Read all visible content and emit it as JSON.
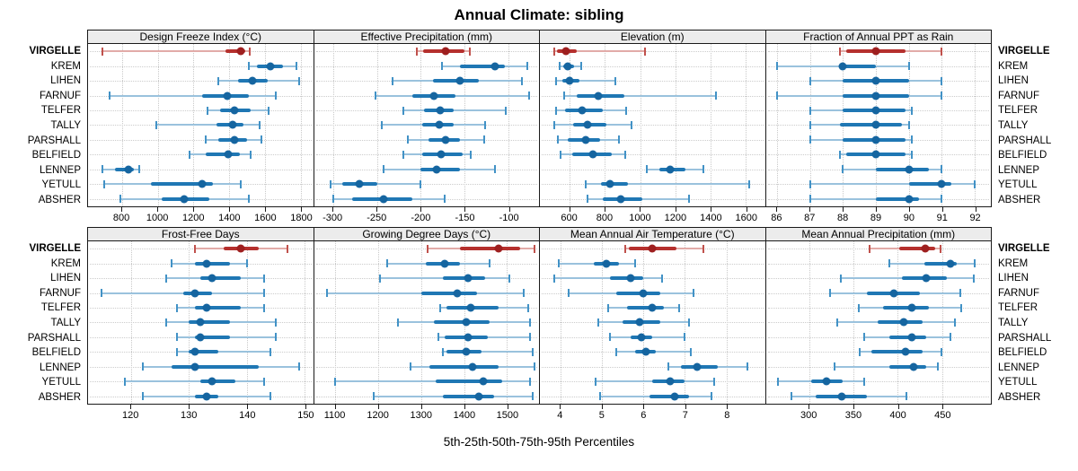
{
  "title": "Annual Climate: sibling",
  "caption": "5th-25th-50th-75th-95th Percentiles",
  "highlight_station": "VIRGELLE",
  "stations": [
    "VIRGELLE",
    "KREM",
    "LIHEN",
    "FARNUF",
    "TELFER",
    "TALLY",
    "PARSHALL",
    "BELFIELD",
    "LENNEP",
    "YETULL",
    "ABSHER"
  ],
  "colors": {
    "highlight_bar": "#b5302d",
    "highlight_dot": "#9e1f1f",
    "highlight_light": "#e2aba8",
    "highlight_cap": "#c0514c",
    "normal_bar": "#1f77b4",
    "normal_dot": "#1565a0",
    "normal_light": "#9ac2dd",
    "normal_cap": "#4292c6",
    "grid": "#c9c9c9",
    "strip_bg": "#ececec",
    "border": "#1a1a1a"
  },
  "chart_data": [
    {
      "type": "interval-dotplot",
      "title": "Design Freeze Index (°C)",
      "percentiles": [
        5,
        25,
        50,
        75,
        95
      ],
      "axis": {
        "min": 610,
        "max": 1870,
        "ticks": [
          800,
          1000,
          1200,
          1400,
          1600,
          1800
        ]
      },
      "values": [
        [
          690,
          1380,
          1465,
          1490,
          1515
        ],
        [
          1510,
          1555,
          1630,
          1700,
          1775
        ],
        [
          1340,
          1450,
          1530,
          1615,
          1790
        ],
        [
          730,
          1250,
          1390,
          1510,
          1660
        ],
        [
          1280,
          1350,
          1430,
          1520,
          1620
        ],
        [
          990,
          1330,
          1420,
          1480,
          1570
        ],
        [
          1270,
          1340,
          1430,
          1500,
          1580
        ],
        [
          1180,
          1270,
          1395,
          1460,
          1520
        ],
        [
          690,
          760,
          835,
          865,
          895
        ],
        [
          700,
          960,
          1250,
          1310,
          1465
        ],
        [
          790,
          1020,
          1150,
          1290,
          1510
        ]
      ]
    },
    {
      "type": "interval-dotplot",
      "title": "Effective Precipitation (mm)",
      "percentiles": [
        5,
        25,
        50,
        75,
        95
      ],
      "axis": {
        "min": -322,
        "max": -65,
        "ticks": [
          -300,
          -250,
          -200,
          -150,
          -100
        ]
      },
      "values": [
        [
          -205,
          -197,
          -172,
          -150,
          -144
        ],
        [
          -176,
          -155,
          -115,
          -104,
          -78
        ],
        [
          -232,
          -186,
          -155,
          -134,
          -84
        ],
        [
          -252,
          -210,
          -185,
          -160,
          -76
        ],
        [
          -220,
          -196,
          -178,
          -162,
          -103
        ],
        [
          -245,
          -198,
          -179,
          -162,
          -127
        ],
        [
          -215,
          -191,
          -172,
          -155,
          -128
        ],
        [
          -220,
          -198,
          -177,
          -152,
          -143
        ],
        [
          -242,
          -200,
          -182,
          -155,
          -115
        ],
        [
          -303,
          -290,
          -270,
          -250,
          -200
        ],
        [
          -300,
          -278,
          -243,
          -210,
          -173
        ]
      ]
    },
    {
      "type": "interval-dotplot",
      "title": "Elevation (m)",
      "percentiles": [
        5,
        25,
        50,
        75,
        95
      ],
      "axis": {
        "min": 430,
        "max": 1710,
        "ticks": [
          600,
          800,
          1000,
          1200,
          1400,
          1600
        ]
      },
      "values": [
        [
          510,
          525,
          580,
          640,
          1030
        ],
        [
          540,
          565,
          590,
          625,
          665
        ],
        [
          520,
          560,
          600,
          655,
          860
        ],
        [
          570,
          640,
          760,
          910,
          1430
        ],
        [
          520,
          575,
          670,
          790,
          920
        ],
        [
          510,
          620,
          700,
          810,
          950
        ],
        [
          530,
          590,
          690,
          770,
          880
        ],
        [
          550,
          615,
          730,
          840,
          915
        ],
        [
          1040,
          1110,
          1170,
          1260,
          1360
        ],
        [
          690,
          780,
          830,
          930,
          1620
        ],
        [
          700,
          790,
          890,
          1010,
          1280
        ]
      ]
    },
    {
      "type": "interval-dotplot",
      "title": "Fraction of Annual PPT as Rain",
      "percentiles": [
        5,
        25,
        50,
        75,
        95
      ],
      "axis": {
        "min": 85.65,
        "max": 92.5,
        "ticks": [
          86,
          87,
          88,
          89,
          90,
          91,
          92
        ]
      },
      "values": [
        [
          87.9,
          88.1,
          89,
          89.9,
          91
        ],
        [
          86,
          87.9,
          88,
          89,
          90
        ],
        [
          87,
          88,
          89,
          90,
          91
        ],
        [
          86,
          88,
          89,
          90,
          91
        ],
        [
          87,
          88,
          89,
          89.9,
          90.1
        ],
        [
          87,
          87.9,
          89,
          89.8,
          90
        ],
        [
          87,
          88,
          89,
          89.9,
          90.1
        ],
        [
          87.9,
          88.1,
          89,
          89.9,
          90.1
        ],
        [
          88,
          89,
          90,
          90.6,
          91
        ],
        [
          87,
          90,
          91,
          91.3,
          92
        ],
        [
          87,
          89,
          90,
          90.3,
          91
        ]
      ]
    },
    {
      "type": "interval-dotplot",
      "title": "Frost-Free Days",
      "percentiles": [
        5,
        25,
        50,
        75,
        95
      ],
      "axis": {
        "min": 112.6,
        "max": 151.4,
        "ticks": [
          120,
          130,
          140,
          150
        ]
      },
      "values": [
        [
          131,
          136,
          139,
          142,
          147
        ],
        [
          127,
          131,
          133,
          137,
          140
        ],
        [
          126,
          132,
          134,
          139,
          143
        ],
        [
          115,
          129,
          131,
          134,
          143
        ],
        [
          128,
          131,
          133,
          139,
          143
        ],
        [
          126,
          130,
          132,
          137,
          145
        ],
        [
          128,
          131,
          132,
          137,
          145
        ],
        [
          128,
          130,
          131,
          135,
          144
        ],
        [
          122,
          127,
          131,
          142,
          149
        ],
        [
          119,
          132,
          134,
          138,
          143
        ],
        [
          122,
          131,
          133,
          135,
          144
        ]
      ]
    },
    {
      "type": "interval-dotplot",
      "title": "Growing Degree Days (°C)",
      "percentiles": [
        5,
        25,
        50,
        75,
        95
      ],
      "axis": {
        "min": 1050,
        "max": 1575,
        "ticks": [
          1100,
          1200,
          1300,
          1400,
          1500
        ]
      },
      "values": [
        [
          1315,
          1390,
          1480,
          1530,
          1565
        ],
        [
          1220,
          1310,
          1355,
          1390,
          1460
        ],
        [
          1205,
          1350,
          1410,
          1450,
          1505
        ],
        [
          1080,
          1300,
          1385,
          1430,
          1540
        ],
        [
          1345,
          1360,
          1415,
          1480,
          1550
        ],
        [
          1245,
          1330,
          1405,
          1460,
          1555
        ],
        [
          1340,
          1355,
          1410,
          1455,
          1555
        ],
        [
          1350,
          1360,
          1405,
          1440,
          1560
        ],
        [
          1275,
          1320,
          1420,
          1480,
          1565
        ],
        [
          1100,
          1335,
          1445,
          1490,
          1555
        ],
        [
          1190,
          1350,
          1435,
          1470,
          1560
        ]
      ]
    },
    {
      "type": "interval-dotplot",
      "title": "Mean Annual Air Temperature (°C)",
      "percentiles": [
        5,
        25,
        50,
        75,
        95
      ],
      "axis": {
        "min": 3.5,
        "max": 8.93,
        "ticks": [
          4,
          5,
          6,
          7,
          8
        ]
      },
      "values": [
        [
          5.55,
          5.65,
          6.2,
          6.8,
          7.45
        ],
        [
          3.95,
          4.8,
          5.1,
          5.4,
          5.8
        ],
        [
          3.85,
          5.2,
          5.7,
          6.0,
          6.45
        ],
        [
          4.2,
          5.35,
          6.0,
          6.4,
          7.2
        ],
        [
          5.15,
          5.6,
          6.2,
          6.5,
          6.85
        ],
        [
          4.9,
          5.5,
          5.9,
          6.4,
          7.1
        ],
        [
          5.2,
          5.7,
          5.95,
          6.2,
          7.0
        ],
        [
          5.35,
          5.8,
          6.05,
          6.3,
          7.15
        ],
        [
          6.6,
          6.9,
          7.3,
          7.8,
          8.5
        ],
        [
          4.85,
          6.2,
          6.65,
          7.0,
          7.7
        ],
        [
          4.95,
          6.15,
          6.75,
          7.1,
          7.65
        ]
      ]
    },
    {
      "type": "interval-dotplot",
      "title": "Mean Annual Precipitation (mm)",
      "percentiles": [
        5,
        25,
        50,
        75,
        95
      ],
      "axis": {
        "min": 251,
        "max": 505,
        "ticks": [
          300,
          350,
          400,
          450
        ]
      },
      "values": [
        [
          368,
          402,
          431,
          442,
          448
        ],
        [
          390,
          430,
          459,
          466,
          487
        ],
        [
          336,
          405,
          432,
          455,
          486
        ],
        [
          324,
          365,
          395,
          425,
          471
        ],
        [
          356,
          383,
          416,
          435,
          472
        ],
        [
          332,
          377,
          407,
          428,
          464
        ],
        [
          362,
          390,
          416,
          432,
          459
        ],
        [
          357,
          370,
          409,
          428,
          449
        ],
        [
          329,
          390,
          418,
          432,
          445
        ],
        [
          265,
          302,
          319,
          338,
          362
        ],
        [
          280,
          307,
          337,
          365,
          410
        ]
      ]
    }
  ]
}
